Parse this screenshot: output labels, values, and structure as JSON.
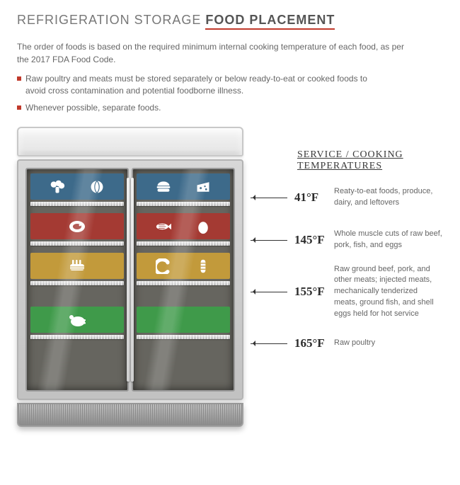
{
  "title_prefix": "REFRIGERATION STORAGE ",
  "title_bold": "FOOD PLACEMENT",
  "intro": "The order of foods is based on the required minimum internal cooking temperature of each food, as per the 2017 FDA Food Code.",
  "bullets": [
    "Raw poultry and meats must be stored separately or below ready-to-eat or cooked foods to avoid cross contamination and potential foodborne illness.",
    "Whenever possible, separate foods."
  ],
  "legend_title": "SERVICE / COOKING\nTEMPERATURES",
  "shelves": [
    {
      "color": "#3d6a8a",
      "temp": "41°F",
      "desc": "Reaty-to-eat foods, produce, dairy, and leftovers",
      "left_icons": [
        "broccoli",
        "cabbage"
      ],
      "right_icons": [
        "burger",
        "cheese"
      ]
    },
    {
      "color": "#a43a33",
      "temp": "145°F",
      "desc": "Whole muscle cuts of raw beef, pork, fish, and eggs",
      "left_icons": [
        "steak"
      ],
      "right_icons": [
        "fish",
        "egg"
      ]
    },
    {
      "color": "#c29a3b",
      "temp": "155°F",
      "desc": "Raw ground beef, pork, and other meats; injected meats, mechanically tenderized meats, ground fish, and shell eggs held for hot service",
      "left_icons": [
        "ribs"
      ],
      "right_icons": [
        "shrimp",
        "sausage"
      ]
    },
    {
      "color": "#3f9a4a",
      "temp": "165°F",
      "desc": "Raw poultry",
      "left_icons": [
        "poultry"
      ],
      "right_icons": []
    }
  ],
  "colors": {
    "accent": "#c0392b",
    "fridge_interior": "#66655f",
    "text": "#666666",
    "arrow": "#333333"
  }
}
